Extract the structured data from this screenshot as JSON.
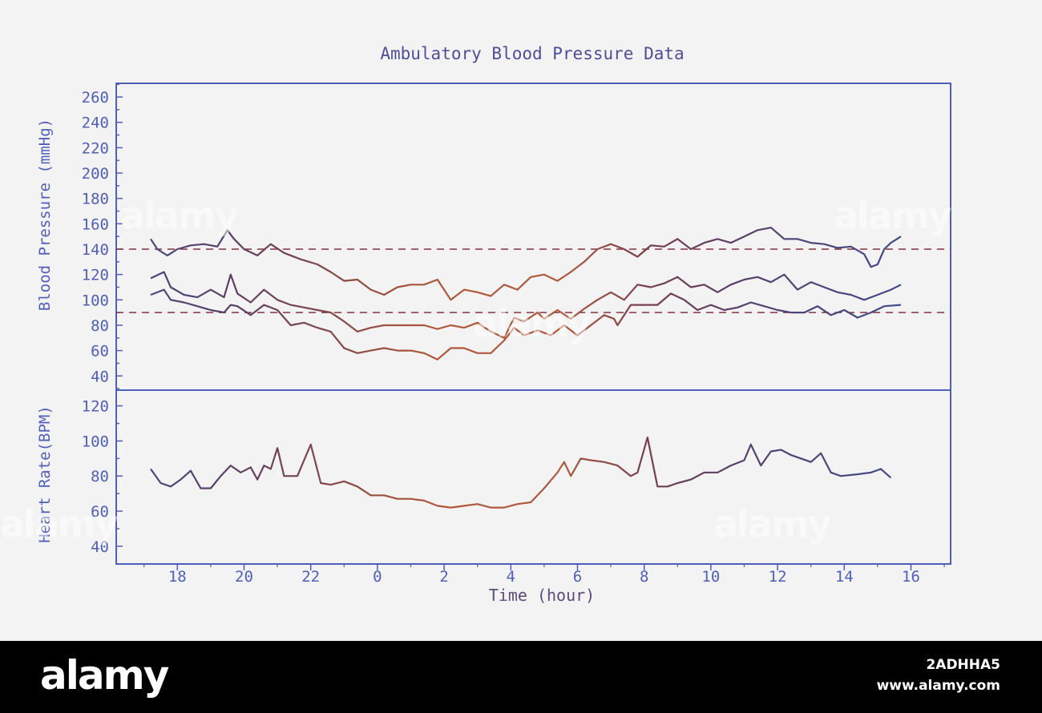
{
  "chart_data": [
    {
      "type": "line",
      "title": "Ambulatory Blood Pressure Data",
      "ylabel": "Blood Pressure (mmHg)",
      "xlabel": "",
      "ylim": [
        30,
        270
      ],
      "yticks": [
        "260",
        "240",
        "220",
        "200",
        "180",
        "160",
        "140",
        "120",
        "100",
        "80",
        "60",
        "40"
      ],
      "reference_lines": [
        140,
        90
      ],
      "series": [
        {
          "values": [
            [
              0.0,
              148
            ],
            [
              0.2,
              140
            ],
            [
              0.5,
              135
            ],
            [
              0.8,
              140
            ],
            [
              1.2,
              143
            ],
            [
              1.6,
              144
            ],
            [
              2.0,
              142
            ],
            [
              2.3,
              155
            ],
            [
              2.5,
              148
            ],
            [
              2.8,
              140
            ],
            [
              3.2,
              135
            ],
            [
              3.6,
              144
            ],
            [
              4.0,
              137
            ],
            [
              4.5,
              132
            ],
            [
              5.0,
              128
            ],
            [
              5.4,
              122
            ],
            [
              5.8,
              115
            ],
            [
              6.2,
              116
            ],
            [
              6.6,
              108
            ],
            [
              7.0,
              104
            ],
            [
              7.4,
              110
            ],
            [
              7.8,
              112
            ],
            [
              8.2,
              112
            ],
            [
              8.6,
              116
            ],
            [
              9.0,
              100
            ],
            [
              9.4,
              108
            ],
            [
              9.8,
              106
            ],
            [
              10.2,
              103
            ],
            [
              10.6,
              112
            ],
            [
              11.0,
              108
            ],
            [
              11.4,
              118
            ],
            [
              11.8,
              120
            ],
            [
              12.2,
              115
            ],
            [
              12.6,
              122
            ],
            [
              13.0,
              130
            ],
            [
              13.4,
              140
            ],
            [
              13.8,
              144
            ],
            [
              14.2,
              140
            ],
            [
              14.6,
              134
            ],
            [
              15.0,
              143
            ],
            [
              15.4,
              142
            ],
            [
              15.8,
              148
            ],
            [
              16.2,
              140
            ],
            [
              16.6,
              145
            ],
            [
              17.0,
              148
            ],
            [
              17.4,
              145
            ],
            [
              17.8,
              150
            ],
            [
              18.2,
              155
            ],
            [
              18.6,
              157
            ],
            [
              19.0,
              148
            ],
            [
              19.4,
              148
            ],
            [
              19.8,
              145
            ],
            [
              20.2,
              144
            ],
            [
              20.6,
              141
            ],
            [
              21.0,
              142
            ],
            [
              21.4,
              136
            ],
            [
              21.6,
              126
            ],
            [
              21.8,
              128
            ],
            [
              22.0,
              140
            ],
            [
              22.2,
              145
            ],
            [
              22.5,
              150
            ]
          ]
        },
        {
          "values": [
            [
              0.0,
              117
            ],
            [
              0.4,
              122
            ],
            [
              0.6,
              110
            ],
            [
              1.0,
              104
            ],
            [
              1.4,
              102
            ],
            [
              1.8,
              108
            ],
            [
              2.2,
              102
            ],
            [
              2.4,
              120
            ],
            [
              2.6,
              105
            ],
            [
              3.0,
              98
            ],
            [
              3.4,
              108
            ],
            [
              3.8,
              100
            ],
            [
              4.2,
              96
            ],
            [
              4.6,
              94
            ],
            [
              5.0,
              92
            ],
            [
              5.4,
              90
            ],
            [
              5.8,
              83
            ],
            [
              6.2,
              75
            ],
            [
              6.6,
              78
            ],
            [
              7.0,
              80
            ],
            [
              7.4,
              80
            ],
            [
              7.8,
              80
            ],
            [
              8.2,
              80
            ],
            [
              8.6,
              77
            ],
            [
              9.0,
              80
            ],
            [
              9.4,
              78
            ],
            [
              9.8,
              82
            ],
            [
              10.2,
              75
            ],
            [
              10.6,
              70
            ],
            [
              10.9,
              86
            ],
            [
              11.2,
              83
            ],
            [
              11.6,
              90
            ],
            [
              11.8,
              85
            ],
            [
              12.2,
              92
            ],
            [
              12.6,
              85
            ],
            [
              13.0,
              93
            ],
            [
              13.4,
              100
            ],
            [
              13.8,
              106
            ],
            [
              14.2,
              100
            ],
            [
              14.6,
              112
            ],
            [
              15.0,
              110
            ],
            [
              15.4,
              113
            ],
            [
              15.8,
              118
            ],
            [
              16.2,
              110
            ],
            [
              16.6,
              112
            ],
            [
              17.0,
              106
            ],
            [
              17.4,
              112
            ],
            [
              17.8,
              116
            ],
            [
              18.2,
              118
            ],
            [
              18.6,
              114
            ],
            [
              19.0,
              120
            ],
            [
              19.4,
              108
            ],
            [
              19.8,
              114
            ],
            [
              20.2,
              110
            ],
            [
              20.6,
              106
            ],
            [
              21.0,
              104
            ],
            [
              21.4,
              100
            ],
            [
              21.8,
              104
            ],
            [
              22.2,
              108
            ],
            [
              22.5,
              112
            ]
          ]
        },
        {
          "values": [
            [
              0.0,
              104
            ],
            [
              0.4,
              108
            ],
            [
              0.6,
              100
            ],
            [
              1.0,
              98
            ],
            [
              1.4,
              95
            ],
            [
              1.8,
              92
            ],
            [
              2.2,
              90
            ],
            [
              2.4,
              96
            ],
            [
              2.6,
              95
            ],
            [
              3.0,
              88
            ],
            [
              3.4,
              96
            ],
            [
              3.8,
              92
            ],
            [
              4.2,
              80
            ],
            [
              4.6,
              82
            ],
            [
              5.0,
              78
            ],
            [
              5.4,
              75
            ],
            [
              5.8,
              62
            ],
            [
              6.2,
              58
            ],
            [
              6.6,
              60
            ],
            [
              7.0,
              62
            ],
            [
              7.4,
              60
            ],
            [
              7.8,
              60
            ],
            [
              8.2,
              58
            ],
            [
              8.6,
              53
            ],
            [
              9.0,
              62
            ],
            [
              9.4,
              62
            ],
            [
              9.8,
              58
            ],
            [
              10.2,
              58
            ],
            [
              10.6,
              68
            ],
            [
              10.9,
              78
            ],
            [
              11.2,
              72
            ],
            [
              11.6,
              76
            ],
            [
              12.0,
              72
            ],
            [
              12.4,
              80
            ],
            [
              12.8,
              72
            ],
            [
              13.2,
              80
            ],
            [
              13.6,
              88
            ],
            [
              13.9,
              85
            ],
            [
              14.0,
              80
            ],
            [
              14.4,
              96
            ],
            [
              14.8,
              96
            ],
            [
              15.2,
              96
            ],
            [
              15.6,
              105
            ],
            [
              16.0,
              100
            ],
            [
              16.4,
              92
            ],
            [
              16.8,
              96
            ],
            [
              17.2,
              92
            ],
            [
              17.6,
              94
            ],
            [
              18.0,
              98
            ],
            [
              18.4,
              95
            ],
            [
              18.8,
              92
            ],
            [
              19.2,
              90
            ],
            [
              19.6,
              90
            ],
            [
              20.0,
              95
            ],
            [
              20.4,
              88
            ],
            [
              20.8,
              92
            ],
            [
              21.2,
              86
            ],
            [
              21.6,
              90
            ],
            [
              22.0,
              95
            ],
            [
              22.5,
              96
            ]
          ]
        }
      ]
    },
    {
      "type": "line",
      "ylabel": "Heart Rate(BPM)",
      "xlabel": "Time (hour)",
      "ylim": [
        30,
        130
      ],
      "yticks": [
        "120",
        "100",
        "80",
        "60",
        "40"
      ],
      "xticks": [
        "18",
        "20",
        "22",
        "0",
        "2",
        "4",
        "6",
        "8",
        "10",
        "12",
        "14",
        "16"
      ],
      "series": [
        {
          "values": [
            [
              0.0,
              84
            ],
            [
              0.3,
              76
            ],
            [
              0.6,
              74
            ],
            [
              0.9,
              78
            ],
            [
              1.2,
              83
            ],
            [
              1.5,
              73
            ],
            [
              1.8,
              73
            ],
            [
              2.1,
              80
            ],
            [
              2.4,
              86
            ],
            [
              2.7,
              82
            ],
            [
              3.0,
              85
            ],
            [
              3.2,
              78
            ],
            [
              3.4,
              86
            ],
            [
              3.6,
              84
            ],
            [
              3.8,
              96
            ],
            [
              4.0,
              80
            ],
            [
              4.4,
              80
            ],
            [
              4.8,
              98
            ],
            [
              5.1,
              76
            ],
            [
              5.4,
              75
            ],
            [
              5.8,
              77
            ],
            [
              6.2,
              74
            ],
            [
              6.6,
              69
            ],
            [
              7.0,
              69
            ],
            [
              7.4,
              67
            ],
            [
              7.8,
              67
            ],
            [
              8.2,
              66
            ],
            [
              8.6,
              63
            ],
            [
              9.0,
              62
            ],
            [
              9.4,
              63
            ],
            [
              9.8,
              64
            ],
            [
              10.2,
              62
            ],
            [
              10.6,
              62
            ],
            [
              11.0,
              64
            ],
            [
              11.4,
              65
            ],
            [
              11.8,
              73
            ],
            [
              12.2,
              82
            ],
            [
              12.4,
              88
            ],
            [
              12.6,
              80
            ],
            [
              12.9,
              90
            ],
            [
              13.2,
              89
            ],
            [
              13.6,
              88
            ],
            [
              14.0,
              86
            ],
            [
              14.4,
              80
            ],
            [
              14.6,
              82
            ],
            [
              14.9,
              102
            ],
            [
              15.2,
              74
            ],
            [
              15.5,
              74
            ],
            [
              15.8,
              76
            ],
            [
              16.2,
              78
            ],
            [
              16.6,
              82
            ],
            [
              17.0,
              82
            ],
            [
              17.4,
              86
            ],
            [
              17.8,
              89
            ],
            [
              18.0,
              98
            ],
            [
              18.3,
              86
            ],
            [
              18.6,
              94
            ],
            [
              18.9,
              95
            ],
            [
              19.2,
              92
            ],
            [
              19.5,
              90
            ],
            [
              19.8,
              88
            ],
            [
              20.1,
              93
            ],
            [
              20.4,
              82
            ],
            [
              20.7,
              80
            ],
            [
              21.2,
              81
            ],
            [
              21.6,
              82
            ],
            [
              21.9,
              84
            ],
            [
              22.2,
              79
            ]
          ]
        }
      ]
    }
  ],
  "watermarks": [
    "alamy",
    "alamy",
    "alamy",
    "alamy",
    "alamy"
  ],
  "footer": {
    "brand": "alamy",
    "image_id": "2ADHHA5",
    "site": "www.alamy.com"
  },
  "colors": {
    "axis": "#5060b8",
    "title": "#4e4e98",
    "night_line": "#a85a3a",
    "day_line": "#4a4a7a",
    "reference": "#883040",
    "footer_bg": "#000000"
  }
}
